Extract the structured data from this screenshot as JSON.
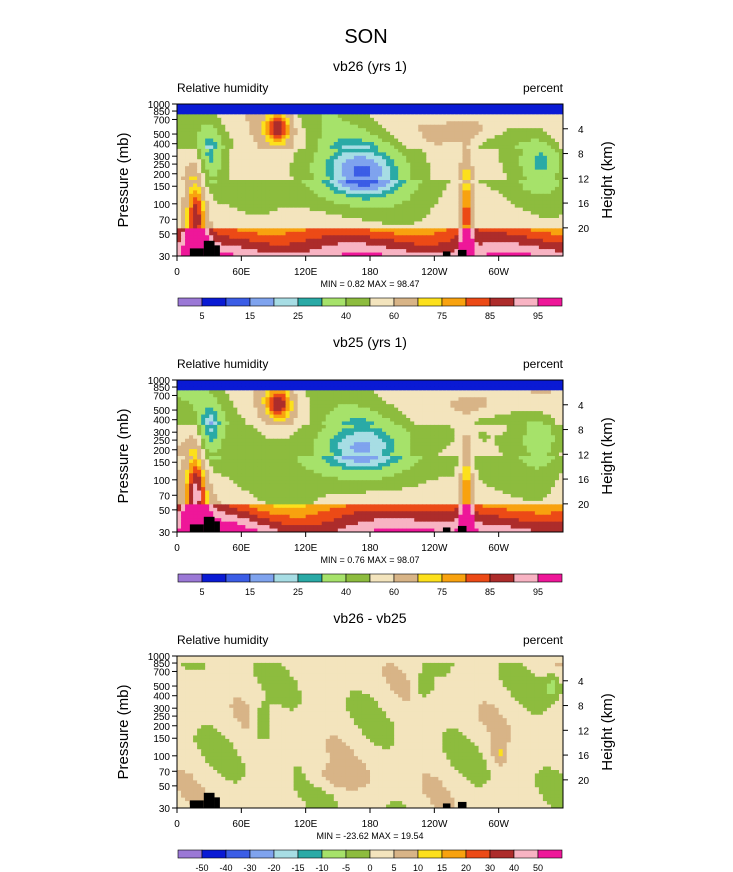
{
  "figure": {
    "main_title": "SON",
    "left_subtitle": "Relative humidity",
    "right_subtitle": "percent",
    "ylabel_left": "Pressure (mb)",
    "ylabel_right": "Height (km)"
  },
  "chart_data": [
    {
      "type": "heatmap",
      "title": "vb26 (yrs 1)",
      "x_ticks": [
        "0",
        "60E",
        "120E",
        "180",
        "120W",
        "60W"
      ],
      "x_tick_lon": [
        0,
        60,
        120,
        180,
        240,
        300
      ],
      "xlim": [
        0,
        360
      ],
      "y_ticks": [
        "1000",
        "850",
        "700",
        "500",
        "400",
        "300",
        "250",
        "200",
        "150",
        "100",
        "70",
        "50",
        "30"
      ],
      "y_tick_p": [
        1000,
        850,
        700,
        500,
        400,
        300,
        250,
        200,
        150,
        100,
        70,
        50,
        30
      ],
      "ylim_mb": [
        1000,
        30
      ],
      "height_ticks": [
        "4",
        "8",
        "12",
        "16",
        "20"
      ],
      "height_km": [
        4,
        8,
        12,
        16,
        20
      ],
      "min_max_label": "MIN =   0.82  MAX =  98.47",
      "min": 0.82,
      "max": 98.47,
      "colorbar_labels": [
        "5",
        "15",
        "25",
        "40",
        "60",
        "75",
        "85",
        "95"
      ],
      "colorbar_levels": [
        5,
        10,
        15,
        20,
        25,
        30,
        40,
        50,
        60,
        70,
        75,
        80,
        85,
        90,
        95
      ],
      "colors": [
        "#9b78d6",
        "#0a1ad4",
        "#3b5de6",
        "#7fa3ee",
        "#a7dde4",
        "#2aaaa6",
        "#a6e26a",
        "#8dbc3e",
        "#f3e4bd",
        "#d8b487",
        "#fce01c",
        "#f8a20f",
        "#ec4a16",
        "#ad2c2b",
        "#f8b3c3",
        "#ee1799"
      ],
      "field": "vb26"
    },
    {
      "type": "heatmap",
      "title": "vb25 (yrs 1)",
      "x_ticks": [
        "0",
        "60E",
        "120E",
        "180",
        "120W",
        "60W"
      ],
      "x_tick_lon": [
        0,
        60,
        120,
        180,
        240,
        300
      ],
      "xlim": [
        0,
        360
      ],
      "y_ticks": [
        "1000",
        "850",
        "700",
        "500",
        "400",
        "300",
        "250",
        "200",
        "150",
        "100",
        "70",
        "50",
        "30"
      ],
      "y_tick_p": [
        1000,
        850,
        700,
        500,
        400,
        300,
        250,
        200,
        150,
        100,
        70,
        50,
        30
      ],
      "ylim_mb": [
        1000,
        30
      ],
      "height_ticks": [
        "4",
        "8",
        "12",
        "16",
        "20"
      ],
      "height_km": [
        4,
        8,
        12,
        16,
        20
      ],
      "min_max_label": "MIN =   0.76  MAX =  98.07",
      "min": 0.76,
      "max": 98.07,
      "colorbar_labels": [
        "5",
        "15",
        "25",
        "40",
        "60",
        "75",
        "85",
        "95"
      ],
      "colorbar_levels": [
        5,
        10,
        15,
        20,
        25,
        30,
        40,
        50,
        60,
        70,
        75,
        80,
        85,
        90,
        95
      ],
      "colors": [
        "#9b78d6",
        "#0a1ad4",
        "#3b5de6",
        "#7fa3ee",
        "#a7dde4",
        "#2aaaa6",
        "#a6e26a",
        "#8dbc3e",
        "#f3e4bd",
        "#d8b487",
        "#fce01c",
        "#f8a20f",
        "#ec4a16",
        "#ad2c2b",
        "#f8b3c3",
        "#ee1799"
      ],
      "field": "vb25"
    },
    {
      "type": "heatmap",
      "title": "vb26 - vb25",
      "x_ticks": [
        "0",
        "60E",
        "120E",
        "180",
        "120W",
        "60W"
      ],
      "x_tick_lon": [
        0,
        60,
        120,
        180,
        240,
        300
      ],
      "xlim": [
        0,
        360
      ],
      "y_ticks": [
        "1000",
        "850",
        "700",
        "500",
        "400",
        "300",
        "250",
        "200",
        "150",
        "100",
        "70",
        "50",
        "30"
      ],
      "y_tick_p": [
        1000,
        850,
        700,
        500,
        400,
        300,
        250,
        200,
        150,
        100,
        70,
        50,
        30
      ],
      "ylim_mb": [
        1000,
        30
      ],
      "height_ticks": [
        "4",
        "8",
        "12",
        "16",
        "20"
      ],
      "height_km": [
        4,
        8,
        12,
        16,
        20
      ],
      "min_max_label": "MIN = -23.62  MAX =  19.54",
      "min": -23.62,
      "max": 19.54,
      "colorbar_labels": [
        "-50",
        "-40",
        "-30",
        "-20",
        "-15",
        "-10",
        "-5",
        "0",
        "5",
        "10",
        "15",
        "20",
        "30",
        "40",
        "50"
      ],
      "colorbar_levels": [
        -50,
        -40,
        -30,
        -20,
        -15,
        -10,
        -5,
        0,
        5,
        10,
        15,
        20,
        30,
        40,
        50
      ],
      "colors": [
        "#9b78d6",
        "#0a1ad4",
        "#3b5de6",
        "#7fa3ee",
        "#a7dde4",
        "#2aaaa6",
        "#a6e26a",
        "#8dbc3e",
        "#f3e4bd",
        "#d8b487",
        "#fce01c",
        "#f8a20f",
        "#ec4a16",
        "#ad2c2b",
        "#f8b3c3",
        "#ee1799"
      ],
      "field": "diff"
    }
  ]
}
